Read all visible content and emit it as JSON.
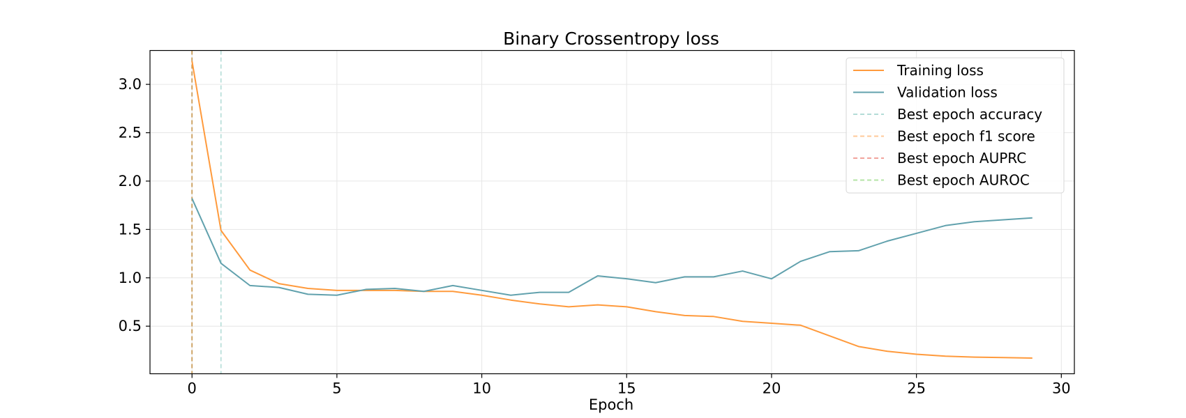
{
  "chart_data": {
    "type": "line",
    "title": "Binary Crossentropy loss",
    "xlabel": "Epoch",
    "ylabel": "",
    "xlim": [
      -1.45,
      30.45
    ],
    "ylim": [
      0.008,
      3.35
    ],
    "xticks": [
      0,
      5,
      10,
      15,
      20,
      25,
      30
    ],
    "yticks": [
      0.5,
      1.0,
      1.5,
      2.0,
      2.5,
      3.0
    ],
    "xtick_labels": [
      "0",
      "5",
      "10",
      "15",
      "20",
      "25",
      "30"
    ],
    "ytick_labels": [
      "0.5",
      "1.0",
      "1.5",
      "2.0",
      "2.5",
      "3.0"
    ],
    "grid": true,
    "legend_position": "top-right",
    "x": [
      0,
      1,
      2,
      3,
      4,
      5,
      6,
      7,
      8,
      9,
      10,
      11,
      12,
      13,
      14,
      15,
      16,
      17,
      18,
      19,
      20,
      21,
      22,
      23,
      24,
      25,
      26,
      27,
      28,
      29
    ],
    "series": [
      {
        "name": "Training loss",
        "color": "#ff9a3c",
        "values": [
          3.24,
          1.49,
          1.08,
          0.94,
          0.89,
          0.87,
          0.87,
          0.87,
          0.86,
          0.86,
          0.82,
          0.77,
          0.73,
          0.7,
          0.72,
          0.7,
          0.65,
          0.61,
          0.6,
          0.55,
          0.53,
          0.51,
          0.4,
          0.29,
          0.24,
          0.21,
          0.19,
          0.18,
          0.175,
          0.17
        ]
      },
      {
        "name": "Validation loss",
        "color": "#61a1ad",
        "values": [
          1.82,
          1.15,
          0.92,
          0.9,
          0.83,
          0.82,
          0.88,
          0.89,
          0.86,
          0.92,
          0.87,
          0.82,
          0.85,
          0.85,
          1.02,
          0.99,
          0.95,
          1.01,
          1.01,
          1.07,
          0.99,
          1.17,
          1.27,
          1.28,
          1.38,
          1.46,
          1.54,
          1.58,
          1.6,
          1.62
        ]
      }
    ],
    "vlines": [
      {
        "name": "Best epoch accuracy",
        "x": 1,
        "color": "#b3dcd7"
      },
      {
        "name": "Best epoch f1 score",
        "x": 0,
        "color": "#ffc99a"
      },
      {
        "name": "Best epoch AUPRC",
        "x": 0,
        "color": "#f2a49c"
      },
      {
        "name": "Best epoch AUROC",
        "x": 0,
        "color": "#b5e4a6"
      }
    ],
    "legend": [
      {
        "label": "Training loss",
        "color": "#ff9a3c",
        "dashed": false
      },
      {
        "label": "Validation loss",
        "color": "#61a1ad",
        "dashed": false
      },
      {
        "label": "Best epoch accuracy",
        "color": "#b3dcd7",
        "dashed": true
      },
      {
        "label": "Best epoch f1 score",
        "color": "#ffc99a",
        "dashed": true
      },
      {
        "label": "Best epoch AUPRC",
        "color": "#f2a49c",
        "dashed": true
      },
      {
        "label": "Best epoch AUROC",
        "color": "#b5e4a6",
        "dashed": true
      }
    ]
  }
}
